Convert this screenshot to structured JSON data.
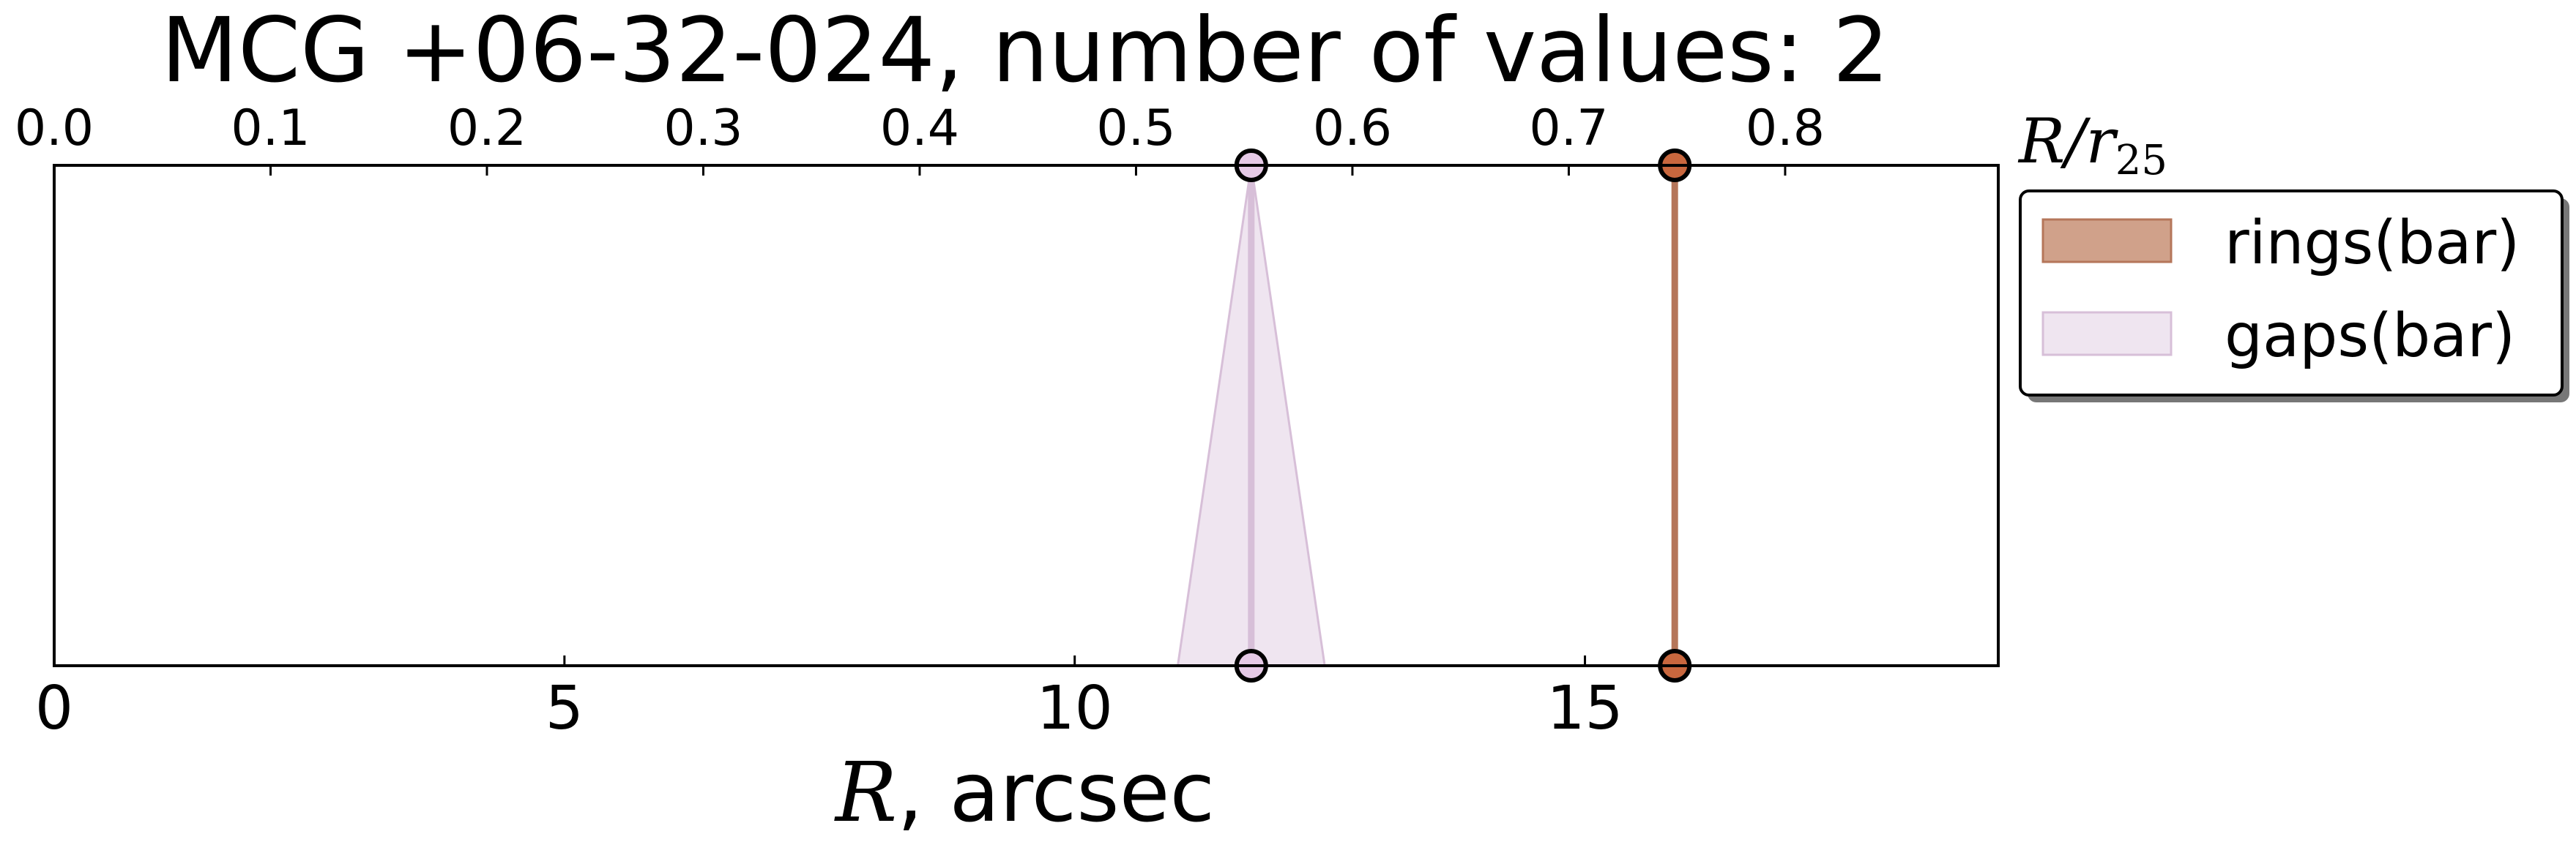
{
  "chart_data": {
    "type": "scatter",
    "title": "MCG +06-32-024, number of values: 2",
    "xlabel_math": "R",
    "xlabel_rest": ", arcsec",
    "x_top_label_main": "R/r",
    "x_top_label_sub": "25",
    "xlim": [
      0,
      19.05
    ],
    "xticks": [
      "0",
      "5",
      "10",
      "15"
    ],
    "xtick_values": [
      0,
      5,
      10,
      15
    ],
    "x_top_lim": [
      0,
      0.8985
    ],
    "x_top_ticks": [
      "0.0",
      "0.1",
      "0.2",
      "0.3",
      "0.4",
      "0.5",
      "0.6",
      "0.7",
      "0.8"
    ],
    "x_top_tick_values": [
      0.0,
      0.1,
      0.2,
      0.3,
      0.4,
      0.5,
      0.6,
      0.7,
      0.8
    ],
    "series": [
      {
        "name": "rings(bar)",
        "x": 15.88,
        "spread": 0.0,
        "color": "#b5765a",
        "fill": "#c08163",
        "marker": "#c8673e"
      },
      {
        "name": "gaps(bar)",
        "x": 11.73,
        "spread": 0.72,
        "color": "#d7bfd8",
        "fill": "#e4d4e6",
        "marker": "#e5c9e6"
      }
    ],
    "legend": {
      "position": "right",
      "items": [
        "rings(bar)",
        "gaps(bar)"
      ]
    }
  }
}
